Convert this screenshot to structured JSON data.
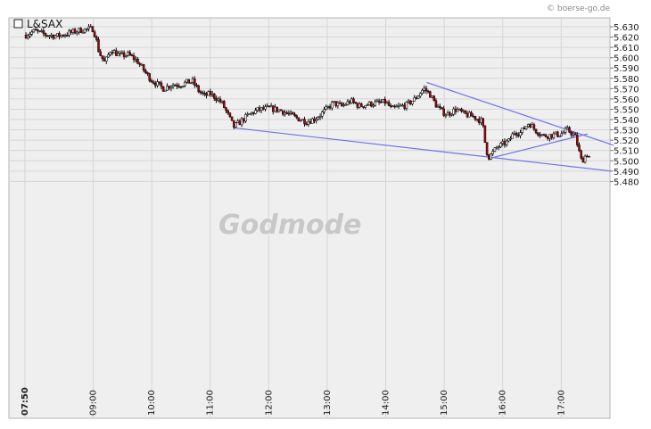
{
  "source_credit": "© boerse-go.de",
  "watermark_text": "Godmode",
  "chart_data": {
    "type": "candlestick",
    "symbol": "L&SAX",
    "legend": [
      {
        "name": "L&SAX"
      }
    ],
    "y_axis": {
      "min": 5.48,
      "max": 5.635,
      "ticks": [
        "5.630",
        "5.620",
        "5.610",
        "5.600",
        "5.590",
        "5.580",
        "5.570",
        "5.560",
        "5.550",
        "5.540",
        "5.530",
        "5.520",
        "5.510",
        "5.500",
        "5.490",
        "5.480"
      ],
      "tick_values": [
        5.63,
        5.62,
        5.61,
        5.6,
        5.59,
        5.58,
        5.57,
        5.56,
        5.55,
        5.54,
        5.53,
        5.52,
        5.51,
        5.5,
        5.49,
        5.48
      ],
      "position": "right",
      "grid": true
    },
    "x_axis": {
      "ticks": [
        "07:50",
        "09:00",
        "10:00",
        "11:00",
        "12:00",
        "13:00",
        "14:00",
        "15:00",
        "16:00",
        "17:00"
      ],
      "tick_hours": [
        7.8333,
        9,
        10,
        11,
        12,
        13,
        14,
        15,
        16,
        17
      ],
      "range_hours": [
        7.75,
        17.9
      ],
      "bold_first_tick": true,
      "grid": true
    },
    "price_path": [
      [
        7.85,
        5.622
      ],
      [
        8.0,
        5.626
      ],
      [
        8.2,
        5.622
      ],
      [
        8.4,
        5.621
      ],
      [
        8.6,
        5.624
      ],
      [
        8.8,
        5.627
      ],
      [
        9.0,
        5.628
      ],
      [
        9.05,
        5.618
      ],
      [
        9.1,
        5.605
      ],
      [
        9.2,
        5.595
      ],
      [
        9.3,
        5.608
      ],
      [
        9.45,
        5.602
      ],
      [
        9.6,
        5.603
      ],
      [
        9.75,
        5.597
      ],
      [
        9.9,
        5.585
      ],
      [
        10.0,
        5.578
      ],
      [
        10.1,
        5.574
      ],
      [
        10.2,
        5.57
      ],
      [
        10.35,
        5.574
      ],
      [
        10.5,
        5.574
      ],
      [
        10.6,
        5.576
      ],
      [
        10.7,
        5.577
      ],
      [
        10.8,
        5.568
      ],
      [
        10.9,
        5.563
      ],
      [
        11.0,
        5.565
      ],
      [
        11.1,
        5.561
      ],
      [
        11.2,
        5.556
      ],
      [
        11.3,
        5.545
      ],
      [
        11.4,
        5.533
      ],
      [
        11.5,
        5.537
      ],
      [
        11.6,
        5.542
      ],
      [
        11.7,
        5.546
      ],
      [
        11.8,
        5.549
      ],
      [
        12.0,
        5.551
      ],
      [
        12.2,
        5.549
      ],
      [
        12.35,
        5.545
      ],
      [
        12.5,
        5.541
      ],
      [
        12.65,
        5.538
      ],
      [
        12.8,
        5.541
      ],
      [
        12.95,
        5.548
      ],
      [
        13.1,
        5.556
      ],
      [
        13.25,
        5.553
      ],
      [
        13.4,
        5.558
      ],
      [
        13.55,
        5.553
      ],
      [
        13.7,
        5.555
      ],
      [
        13.85,
        5.556
      ],
      [
        14.0,
        5.557
      ],
      [
        14.1,
        5.55
      ],
      [
        14.2,
        5.552
      ],
      [
        14.35,
        5.554
      ],
      [
        14.5,
        5.56
      ],
      [
        14.65,
        5.57
      ],
      [
        14.75,
        5.565
      ],
      [
        14.85,
        5.555
      ],
      [
        14.95,
        5.548
      ],
      [
        15.05,
        5.545
      ],
      [
        15.2,
        5.55
      ],
      [
        15.35,
        5.545
      ],
      [
        15.5,
        5.543
      ],
      [
        15.65,
        5.538
      ],
      [
        15.7,
        5.517
      ],
      [
        15.75,
        5.503
      ],
      [
        15.82,
        5.507
      ],
      [
        15.9,
        5.513
      ],
      [
        16.0,
        5.516
      ],
      [
        16.1,
        5.519
      ],
      [
        16.2,
        5.528
      ],
      [
        16.3,
        5.527
      ],
      [
        16.45,
        5.537
      ],
      [
        16.55,
        5.53
      ],
      [
        16.7,
        5.524
      ],
      [
        16.85,
        5.525
      ],
      [
        17.0,
        5.526
      ],
      [
        17.1,
        5.53
      ],
      [
        17.2,
        5.526
      ],
      [
        17.25,
        5.522
      ],
      [
        17.3,
        5.51
      ],
      [
        17.35,
        5.499
      ],
      [
        17.4,
        5.504
      ],
      [
        17.45,
        5.507
      ],
      [
        17.5,
        5.501
      ]
    ],
    "trendlines": [
      {
        "from": [
          11.4,
          5.532
        ],
        "to": [
          17.85,
          5.49
        ]
      },
      {
        "from": [
          14.7,
          5.576
        ],
        "to": [
          17.9,
          5.515
        ]
      },
      {
        "from": [
          15.75,
          5.502
        ],
        "to": [
          17.45,
          5.526
        ]
      }
    ]
  }
}
